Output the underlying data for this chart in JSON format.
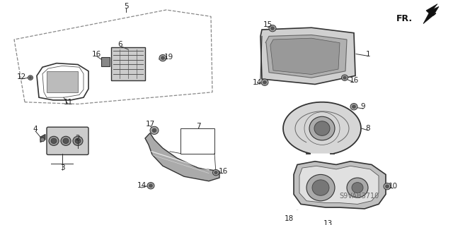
{
  "bg_color": "#ffffff",
  "fig_width": 6.4,
  "fig_height": 3.19,
  "dpi": 100,
  "diagram_code": "S9VAB3710",
  "fr_label": "FR.",
  "line_color": "#333333",
  "text_color": "#222222"
}
